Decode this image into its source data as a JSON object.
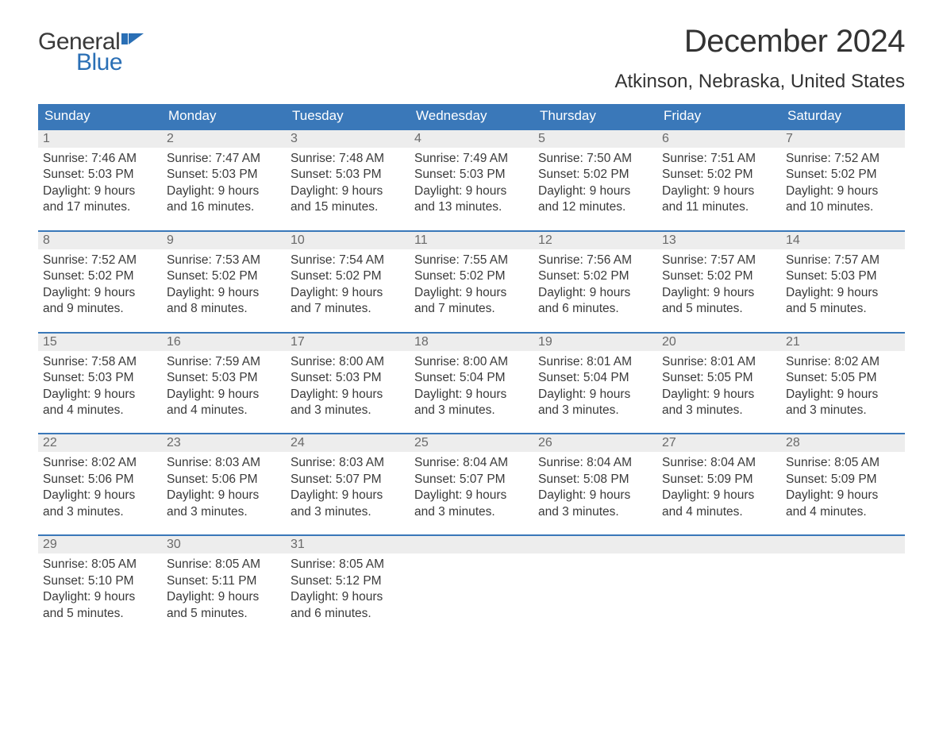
{
  "logo": {
    "text_general": "General",
    "text_blue": "Blue",
    "flag_color": "#2a6fb5"
  },
  "title": "December 2024",
  "location": "Atkinson, Nebraska, United States",
  "colors": {
    "header_bg": "#3a78b9",
    "header_text": "#ffffff",
    "row_border": "#3a78b9",
    "daynum_bg": "#ededed",
    "daynum_text": "#6a6a6a",
    "body_text": "#3a3a3a",
    "logo_blue": "#2a6fb5",
    "background": "#ffffff"
  },
  "typography": {
    "title_fontsize": 40,
    "location_fontsize": 24,
    "dayheader_fontsize": 17,
    "daynum_fontsize": 16,
    "content_fontsize": 15.5,
    "font_family": "Arial"
  },
  "day_headers": [
    "Sunday",
    "Monday",
    "Tuesday",
    "Wednesday",
    "Thursday",
    "Friday",
    "Saturday"
  ],
  "weeks": [
    [
      {
        "num": "1",
        "sunrise": "Sunrise: 7:46 AM",
        "sunset": "Sunset: 5:03 PM",
        "daylight1": "Daylight: 9 hours",
        "daylight2": "and 17 minutes."
      },
      {
        "num": "2",
        "sunrise": "Sunrise: 7:47 AM",
        "sunset": "Sunset: 5:03 PM",
        "daylight1": "Daylight: 9 hours",
        "daylight2": "and 16 minutes."
      },
      {
        "num": "3",
        "sunrise": "Sunrise: 7:48 AM",
        "sunset": "Sunset: 5:03 PM",
        "daylight1": "Daylight: 9 hours",
        "daylight2": "and 15 minutes."
      },
      {
        "num": "4",
        "sunrise": "Sunrise: 7:49 AM",
        "sunset": "Sunset: 5:03 PM",
        "daylight1": "Daylight: 9 hours",
        "daylight2": "and 13 minutes."
      },
      {
        "num": "5",
        "sunrise": "Sunrise: 7:50 AM",
        "sunset": "Sunset: 5:02 PM",
        "daylight1": "Daylight: 9 hours",
        "daylight2": "and 12 minutes."
      },
      {
        "num": "6",
        "sunrise": "Sunrise: 7:51 AM",
        "sunset": "Sunset: 5:02 PM",
        "daylight1": "Daylight: 9 hours",
        "daylight2": "and 11 minutes."
      },
      {
        "num": "7",
        "sunrise": "Sunrise: 7:52 AM",
        "sunset": "Sunset: 5:02 PM",
        "daylight1": "Daylight: 9 hours",
        "daylight2": "and 10 minutes."
      }
    ],
    [
      {
        "num": "8",
        "sunrise": "Sunrise: 7:52 AM",
        "sunset": "Sunset: 5:02 PM",
        "daylight1": "Daylight: 9 hours",
        "daylight2": "and 9 minutes."
      },
      {
        "num": "9",
        "sunrise": "Sunrise: 7:53 AM",
        "sunset": "Sunset: 5:02 PM",
        "daylight1": "Daylight: 9 hours",
        "daylight2": "and 8 minutes."
      },
      {
        "num": "10",
        "sunrise": "Sunrise: 7:54 AM",
        "sunset": "Sunset: 5:02 PM",
        "daylight1": "Daylight: 9 hours",
        "daylight2": "and 7 minutes."
      },
      {
        "num": "11",
        "sunrise": "Sunrise: 7:55 AM",
        "sunset": "Sunset: 5:02 PM",
        "daylight1": "Daylight: 9 hours",
        "daylight2": "and 7 minutes."
      },
      {
        "num": "12",
        "sunrise": "Sunrise: 7:56 AM",
        "sunset": "Sunset: 5:02 PM",
        "daylight1": "Daylight: 9 hours",
        "daylight2": "and 6 minutes."
      },
      {
        "num": "13",
        "sunrise": "Sunrise: 7:57 AM",
        "sunset": "Sunset: 5:02 PM",
        "daylight1": "Daylight: 9 hours",
        "daylight2": "and 5 minutes."
      },
      {
        "num": "14",
        "sunrise": "Sunrise: 7:57 AM",
        "sunset": "Sunset: 5:03 PM",
        "daylight1": "Daylight: 9 hours",
        "daylight2": "and 5 minutes."
      }
    ],
    [
      {
        "num": "15",
        "sunrise": "Sunrise: 7:58 AM",
        "sunset": "Sunset: 5:03 PM",
        "daylight1": "Daylight: 9 hours",
        "daylight2": "and 4 minutes."
      },
      {
        "num": "16",
        "sunrise": "Sunrise: 7:59 AM",
        "sunset": "Sunset: 5:03 PM",
        "daylight1": "Daylight: 9 hours",
        "daylight2": "and 4 minutes."
      },
      {
        "num": "17",
        "sunrise": "Sunrise: 8:00 AM",
        "sunset": "Sunset: 5:03 PM",
        "daylight1": "Daylight: 9 hours",
        "daylight2": "and 3 minutes."
      },
      {
        "num": "18",
        "sunrise": "Sunrise: 8:00 AM",
        "sunset": "Sunset: 5:04 PM",
        "daylight1": "Daylight: 9 hours",
        "daylight2": "and 3 minutes."
      },
      {
        "num": "19",
        "sunrise": "Sunrise: 8:01 AM",
        "sunset": "Sunset: 5:04 PM",
        "daylight1": "Daylight: 9 hours",
        "daylight2": "and 3 minutes."
      },
      {
        "num": "20",
        "sunrise": "Sunrise: 8:01 AM",
        "sunset": "Sunset: 5:05 PM",
        "daylight1": "Daylight: 9 hours",
        "daylight2": "and 3 minutes."
      },
      {
        "num": "21",
        "sunrise": "Sunrise: 8:02 AM",
        "sunset": "Sunset: 5:05 PM",
        "daylight1": "Daylight: 9 hours",
        "daylight2": "and 3 minutes."
      }
    ],
    [
      {
        "num": "22",
        "sunrise": "Sunrise: 8:02 AM",
        "sunset": "Sunset: 5:06 PM",
        "daylight1": "Daylight: 9 hours",
        "daylight2": "and 3 minutes."
      },
      {
        "num": "23",
        "sunrise": "Sunrise: 8:03 AM",
        "sunset": "Sunset: 5:06 PM",
        "daylight1": "Daylight: 9 hours",
        "daylight2": "and 3 minutes."
      },
      {
        "num": "24",
        "sunrise": "Sunrise: 8:03 AM",
        "sunset": "Sunset: 5:07 PM",
        "daylight1": "Daylight: 9 hours",
        "daylight2": "and 3 minutes."
      },
      {
        "num": "25",
        "sunrise": "Sunrise: 8:04 AM",
        "sunset": "Sunset: 5:07 PM",
        "daylight1": "Daylight: 9 hours",
        "daylight2": "and 3 minutes."
      },
      {
        "num": "26",
        "sunrise": "Sunrise: 8:04 AM",
        "sunset": "Sunset: 5:08 PM",
        "daylight1": "Daylight: 9 hours",
        "daylight2": "and 3 minutes."
      },
      {
        "num": "27",
        "sunrise": "Sunrise: 8:04 AM",
        "sunset": "Sunset: 5:09 PM",
        "daylight1": "Daylight: 9 hours",
        "daylight2": "and 4 minutes."
      },
      {
        "num": "28",
        "sunrise": "Sunrise: 8:05 AM",
        "sunset": "Sunset: 5:09 PM",
        "daylight1": "Daylight: 9 hours",
        "daylight2": "and 4 minutes."
      }
    ],
    [
      {
        "num": "29",
        "sunrise": "Sunrise: 8:05 AM",
        "sunset": "Sunset: 5:10 PM",
        "daylight1": "Daylight: 9 hours",
        "daylight2": "and 5 minutes."
      },
      {
        "num": "30",
        "sunrise": "Sunrise: 8:05 AM",
        "sunset": "Sunset: 5:11 PM",
        "daylight1": "Daylight: 9 hours",
        "daylight2": "and 5 minutes."
      },
      {
        "num": "31",
        "sunrise": "Sunrise: 8:05 AM",
        "sunset": "Sunset: 5:12 PM",
        "daylight1": "Daylight: 9 hours",
        "daylight2": "and 6 minutes."
      },
      {
        "empty": true
      },
      {
        "empty": true
      },
      {
        "empty": true
      },
      {
        "empty": true
      }
    ]
  ]
}
